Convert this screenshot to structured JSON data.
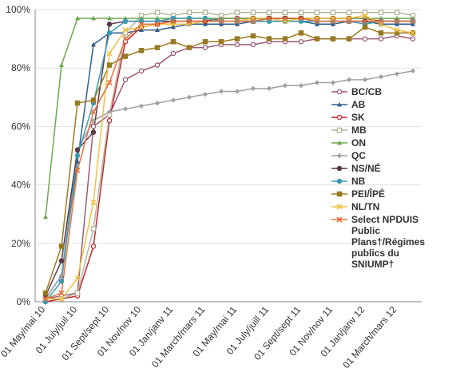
{
  "chart_data": {
    "type": "line",
    "categories": [
      "01 May/mai 10",
      null,
      "01 July/juil 10",
      null,
      "01 Sept/sept 10",
      null,
      "01 Nov/nov 10",
      null,
      "01 Jan/janv 11",
      null,
      "01 March/mars 11",
      null,
      "01 May/mai 11",
      null,
      "01 July/juill 11",
      null,
      "01 Sept/sept 11",
      null,
      "01 Nov/nov 11",
      null,
      "01 Jan/janv 12",
      null,
      "01 March/mars 12",
      null
    ],
    "ylim": [
      0,
      100
    ],
    "yticks": [
      {
        "value": 0,
        "label": "0%"
      },
      {
        "value": 20,
        "label": "20%"
      },
      {
        "value": 40,
        "label": "40%"
      },
      {
        "value": 60,
        "label": "60%"
      },
      {
        "value": 80,
        "label": "80%"
      },
      {
        "value": 100,
        "label": "100%"
      }
    ],
    "grid": true,
    "legend": "right",
    "series": [
      {
        "name": "BC/CB",
        "color": "#9b5a78",
        "marker": "circle-open",
        "values": [
          1,
          2,
          3,
          60,
          64,
          76,
          79,
          81,
          85,
          87,
          87,
          88,
          88,
          88,
          89,
          89,
          89,
          90,
          90,
          90,
          90,
          90,
          91,
          90
        ]
      },
      {
        "name": "AB",
        "color": "#2f5f8f",
        "marker": "triangle",
        "values": [
          1,
          9,
          48,
          88,
          92,
          92,
          93,
          93,
          94,
          95,
          95,
          95,
          95,
          96,
          96,
          96,
          96,
          95,
          95,
          96,
          96,
          95,
          95,
          95
        ]
      },
      {
        "name": "SK",
        "color": "#c0272d",
        "marker": "circle-open",
        "values": [
          0,
          1,
          2,
          19,
          62,
          89,
          94,
          95,
          96,
          96,
          96,
          97,
          97,
          97,
          97,
          97,
          97,
          97,
          97,
          97,
          97,
          96,
          96,
          96
        ]
      },
      {
        "name": "MB",
        "color": "#b5b59c",
        "marker": "square-open",
        "values": [
          1,
          1,
          3,
          25,
          64,
          92,
          98,
          99,
          98,
          99,
          99,
          98,
          99,
          99,
          99,
          99,
          99,
          99,
          99,
          99,
          99,
          99,
          99,
          98
        ]
      },
      {
        "name": "ON",
        "color": "#6aa84f",
        "marker": "triangle",
        "values": [
          29,
          81,
          97,
          97,
          97,
          97,
          97,
          97,
          97,
          97,
          97,
          97,
          97,
          97,
          97,
          97,
          97,
          97,
          97,
          97,
          97,
          97,
          97,
          97
        ]
      },
      {
        "name": "QC",
        "color": "#a0a0a0",
        "marker": "diamond",
        "values": [
          1,
          9,
          52,
          62,
          65,
          66,
          67,
          68,
          69,
          70,
          71,
          72,
          72,
          73,
          73,
          74,
          74,
          75,
          75,
          76,
          76,
          77,
          78,
          79
        ]
      },
      {
        "name": "NS/NÉ",
        "color": "#5a3a4a",
        "marker": "circle",
        "values": [
          2,
          14,
          52,
          58,
          95,
          96,
          96,
          96,
          96,
          96,
          96,
          96,
          96,
          96,
          97,
          97,
          97,
          96,
          96,
          96,
          96,
          96,
          96,
          96
        ]
      },
      {
        "name": "NB",
        "color": "#3a9ab5",
        "marker": "circle",
        "values": [
          0,
          7,
          50,
          68,
          92,
          96,
          96,
          96,
          97,
          97,
          97,
          96,
          96,
          96,
          96,
          96,
          96,
          96,
          96,
          96,
          95,
          96,
          96,
          96
        ]
      },
      {
        "name": "PEI/ÎPÉ",
        "color": "#9a7a20",
        "marker": "square",
        "values": [
          3,
          19,
          68,
          69,
          81,
          84,
          86,
          87,
          89,
          87,
          89,
          89,
          90,
          91,
          90,
          90,
          92,
          90,
          90,
          90,
          94,
          92,
          92,
          92
        ]
      },
      {
        "name": "NL/TN",
        "color": "#f0c040",
        "marker": "x",
        "values": [
          1,
          1,
          8,
          34,
          85,
          93,
          94,
          95,
          95,
          95,
          96,
          96,
          96,
          97,
          97,
          96,
          97,
          97,
          97,
          97,
          98,
          95,
          93,
          92
        ]
      },
      {
        "name": "Select NPDUIS Public Plans†/Régimes publics du SNIUMP†",
        "color": "#e8703a",
        "marker": "x",
        "values": [
          1,
          3,
          45,
          65,
          75,
          90,
          95,
          95,
          96,
          96,
          96,
          96,
          96,
          96,
          97,
          97,
          97,
          96,
          96,
          96,
          96,
          96,
          96,
          96
        ]
      }
    ]
  }
}
